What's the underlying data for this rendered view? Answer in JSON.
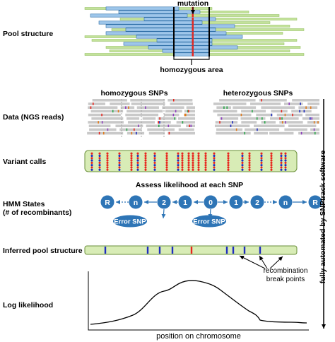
{
  "labels": {
    "mutation": "mutation",
    "homozygous_area": "homozygous area",
    "homozygous_snps": "homozygous SNPs",
    "heterozygous_snps": "heterozygous SNPs",
    "assess": "Assess likelihood at each SNP",
    "recomb_line1": "recombination",
    "recomb_line2": "break points",
    "xaxis": "position on chromosome",
    "vertical": "fully automated by SNPtrack software"
  },
  "rows": {
    "pool": "Pool structure",
    "data": "Data (NGS reads)",
    "variant": "Variant calls",
    "hmm_line1": "HMM States",
    "hmm_line2": "(# of recombinants)",
    "inferred": "Inferred pool structure",
    "loglik": "Log likelihood"
  },
  "hmm": {
    "states": [
      "R",
      "n",
      "2",
      "1",
      "0",
      "1",
      "2",
      "n",
      "R"
    ],
    "error_label": "Error SNP"
  },
  "colors": {
    "read_blue": "#9ec6ea",
    "read_green": "#c3e29a",
    "green_bar_fill": "#d8ecb6",
    "state_blue": "#2e75b6",
    "snp_red": "#e8251d",
    "snp_blue": "#1f2dbf",
    "gray_read": "#c9c9c9"
  }
}
